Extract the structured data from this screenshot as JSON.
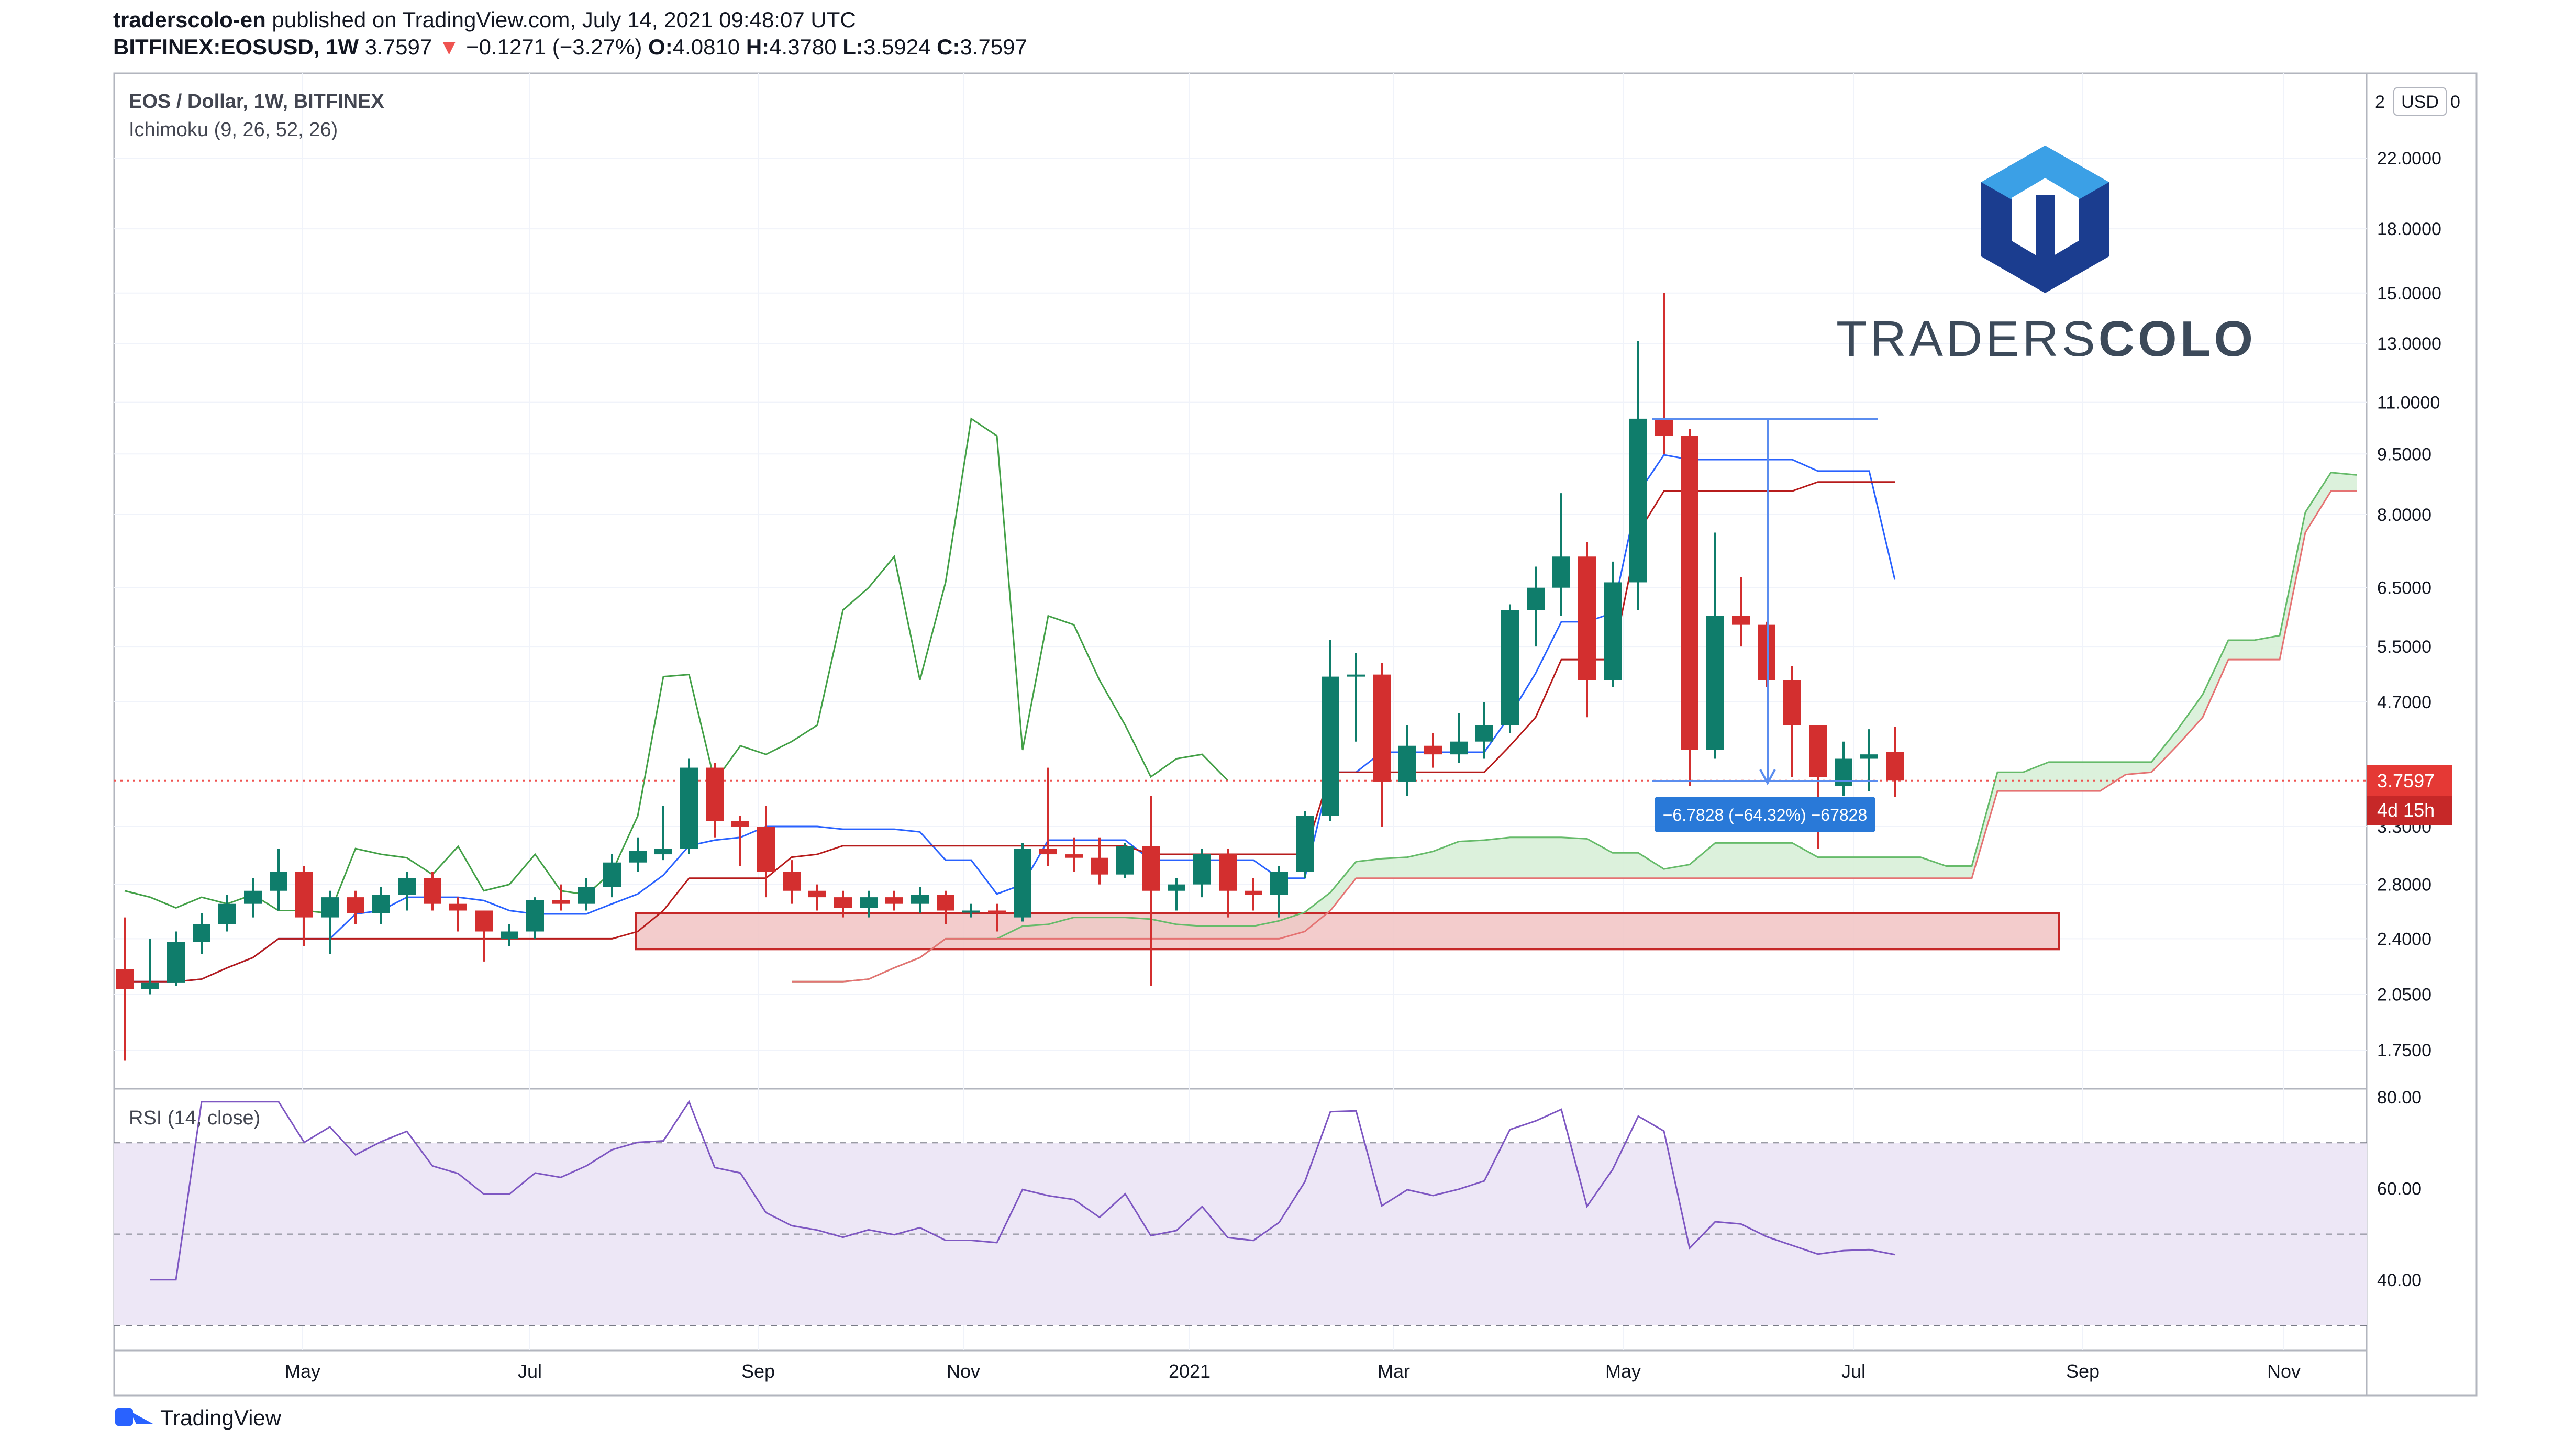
{
  "header": {
    "author": "traderscolo-en",
    "published_text": "published on TradingView.com, July 14, 2021 09:48:07 UTC",
    "symbol_line": "BITFINEX:EOSUSD, 1W",
    "last_price": "3.7597",
    "change_arrow": "▼",
    "change": "−0.1271 (−3.27%)",
    "open_label": "O:",
    "open": "4.0810",
    "high_label": "H:",
    "high": "4.3780",
    "low_label": "L:",
    "low": "3.5924",
    "close_label": "C:",
    "close": "3.7597"
  },
  "legend": {
    "title": "EOS / Dollar, 1W, BITFINEX",
    "indicator": "Ichimoku (9, 26, 52, 26)",
    "rsi": "RSI (14, close)"
  },
  "logo": {
    "text_light": "TRADERS",
    "text_bold": "COLO"
  },
  "footer": {
    "brand": "TradingView"
  },
  "colors": {
    "up": "#0f7d6b",
    "down": "#d32f2f",
    "tenkan": "#2962ff",
    "kijun": "#b71c1c",
    "chikou": "#43a047",
    "cloud_bear": "#fde0dc",
    "cloud_bull": "#d8efd8",
    "rsi_line": "#7e57c2",
    "rsi_band": "#ede7f6",
    "support_zone": "#e8a0a0"
  },
  "chart_data": {
    "type": "candlestick",
    "symbol": "EOSUSD",
    "interval": "1W",
    "scale": "log",
    "y_ticks": [
      "22.0000",
      "18.0000",
      "15.0000",
      "13.0000",
      "11.0000",
      "9.5000",
      "8.0000",
      "6.5000",
      "5.5000",
      "4.7000",
      "3.3000",
      "2.8000",
      "2.4000",
      "2.0500",
      "1.7500"
    ],
    "x_ticks": [
      "May",
      "Jul",
      "Sep",
      "Nov",
      "2021",
      "Mar",
      "May",
      "Jul",
      "Sep",
      "Nov"
    ],
    "currency_label": "USD",
    "top_tick_partial": "2",
    "last_price_label": "3.7597",
    "countdown_label": "4d 15h",
    "measurement_label": "−6.7828 (−64.32%) −67828",
    "support_zone": {
      "low": 2.33,
      "high": 2.58
    },
    "candles": [
      [
        2.2,
        2.55,
        1.7,
        2.08
      ],
      [
        2.08,
        2.4,
        2.05,
        2.12
      ],
      [
        2.12,
        2.45,
        2.1,
        2.38
      ],
      [
        2.38,
        2.58,
        2.3,
        2.5
      ],
      [
        2.5,
        2.72,
        2.45,
        2.65
      ],
      [
        2.65,
        2.85,
        2.55,
        2.75
      ],
      [
        2.75,
        3.1,
        2.6,
        2.9
      ],
      [
        2.9,
        2.95,
        2.35,
        2.55
      ],
      [
        2.55,
        2.75,
        2.3,
        2.7
      ],
      [
        2.7,
        2.75,
        2.5,
        2.58
      ],
      [
        2.58,
        2.78,
        2.5,
        2.72
      ],
      [
        2.72,
        2.9,
        2.6,
        2.85
      ],
      [
        2.85,
        2.9,
        2.6,
        2.65
      ],
      [
        2.65,
        2.7,
        2.45,
        2.6
      ],
      [
        2.6,
        2.6,
        2.25,
        2.45
      ],
      [
        2.4,
        2.5,
        2.35,
        2.45
      ],
      [
        2.45,
        2.7,
        2.4,
        2.68
      ],
      [
        2.68,
        2.8,
        2.6,
        2.65
      ],
      [
        2.65,
        2.85,
        2.6,
        2.78
      ],
      [
        2.78,
        3.05,
        2.7,
        2.98
      ],
      [
        2.98,
        3.2,
        2.9,
        3.08
      ],
      [
        3.05,
        3.5,
        3.0,
        3.1
      ],
      [
        3.1,
        4.0,
        3.05,
        3.9
      ],
      [
        3.9,
        3.95,
        3.2,
        3.35
      ],
      [
        3.35,
        3.4,
        2.95,
        3.3
      ],
      [
        3.3,
        3.5,
        2.7,
        2.9
      ],
      [
        2.9,
        3.0,
        2.65,
        2.75
      ],
      [
        2.75,
        2.8,
        2.6,
        2.7
      ],
      [
        2.7,
        2.75,
        2.55,
        2.62
      ],
      [
        2.62,
        2.75,
        2.55,
        2.7
      ],
      [
        2.7,
        2.75,
        2.6,
        2.65
      ],
      [
        2.65,
        2.78,
        2.58,
        2.72
      ],
      [
        2.72,
        2.75,
        2.5,
        2.6
      ],
      [
        2.6,
        2.65,
        2.55,
        2.6
      ],
      [
        2.6,
        2.65,
        2.45,
        2.58
      ],
      [
        2.55,
        3.15,
        2.52,
        3.1
      ],
      [
        3.1,
        3.9,
        2.95,
        3.05
      ],
      [
        3.05,
        3.2,
        2.9,
        3.02
      ],
      [
        3.02,
        3.2,
        2.8,
        2.88
      ],
      [
        2.88,
        3.15,
        2.85,
        3.12
      ],
      [
        3.12,
        3.6,
        2.1,
        2.75
      ],
      [
        2.75,
        2.85,
        2.6,
        2.8
      ],
      [
        2.8,
        3.1,
        2.7,
        3.05
      ],
      [
        3.05,
        3.1,
        2.55,
        2.75
      ],
      [
        2.75,
        2.85,
        2.6,
        2.72
      ],
      [
        2.72,
        2.95,
        2.55,
        2.9
      ],
      [
        2.9,
        3.45,
        2.85,
        3.4
      ],
      [
        3.4,
        5.6,
        3.35,
        5.05
      ],
      [
        5.05,
        5.4,
        4.2,
        5.08
      ],
      [
        5.08,
        5.25,
        3.3,
        3.75
      ],
      [
        3.75,
        4.4,
        3.6,
        4.15
      ],
      [
        4.15,
        4.3,
        3.9,
        4.05
      ],
      [
        4.05,
        4.55,
        3.95,
        4.2
      ],
      [
        4.2,
        4.7,
        4.0,
        4.4
      ],
      [
        4.4,
        6.2,
        4.3,
        6.1
      ],
      [
        6.1,
        6.9,
        5.5,
        6.5
      ],
      [
        6.5,
        8.5,
        6.0,
        7.1
      ],
      [
        7.1,
        7.4,
        4.5,
        5.0
      ],
      [
        5.0,
        7.0,
        4.9,
        6.6
      ],
      [
        6.6,
        13.1,
        6.1,
        10.5
      ],
      [
        10.5,
        15.0,
        9.5,
        10.0
      ],
      [
        10.0,
        10.2,
        3.7,
        4.1
      ],
      [
        4.1,
        7.6,
        4.0,
        6.0
      ],
      [
        6.0,
        6.7,
        5.5,
        5.85
      ],
      [
        5.85,
        5.9,
        4.9,
        5.0
      ],
      [
        5.0,
        5.2,
        3.8,
        4.4
      ],
      [
        4.4,
        4.4,
        3.1,
        3.8
      ],
      [
        3.7,
        4.2,
        3.6,
        4.0
      ],
      [
        4.0,
        4.35,
        3.65,
        4.05
      ],
      [
        4.08,
        4.38,
        3.59,
        3.76
      ]
    ],
    "rsi": {
      "upper": 70,
      "lower": 30,
      "middle": 50,
      "ticks": [
        "80.00",
        "60.00",
        "40.00"
      ]
    }
  }
}
